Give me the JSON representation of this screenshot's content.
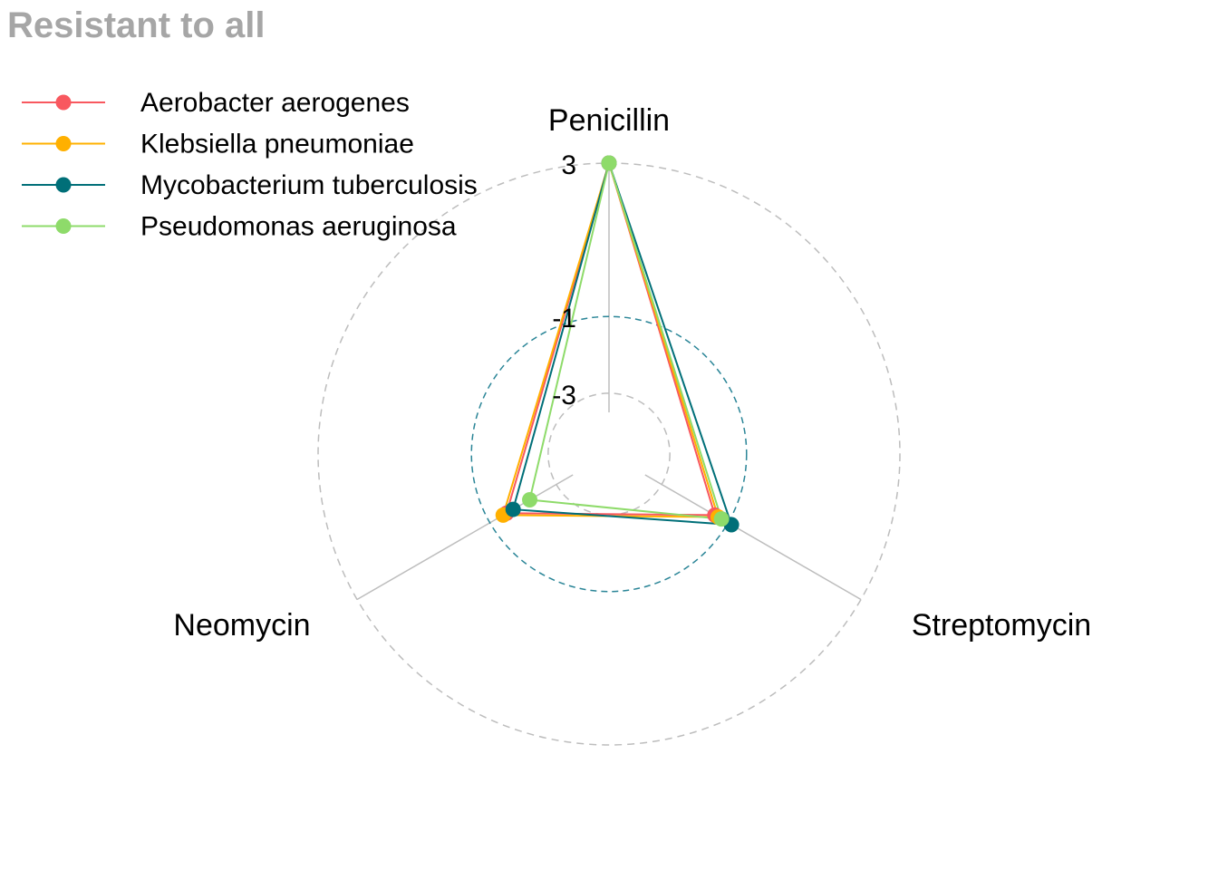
{
  "chart_data": {
    "type": "radar",
    "title": "Resistant to all",
    "axes": [
      "Penicillin",
      "Streptomycin",
      "Neomycin"
    ],
    "grid_levels": [
      -3,
      -1,
      3
    ],
    "grid_labels": [
      "-3",
      "-1",
      "3"
    ],
    "range": [
      -3.5,
      3
    ],
    "legend_position": "top-left",
    "series": [
      {
        "name": "Aerobacter aerogenes",
        "color": "#F8585F",
        "values": [
          3.0,
          -1.4,
          -1.5
        ]
      },
      {
        "name": "Klebsiella pneumoniae",
        "color": "#FFB000",
        "values": [
          3.0,
          -1.3,
          -1.4
        ]
      },
      {
        "name": "Mycobacterium tuberculosis",
        "color": "#006F78",
        "values": [
          3.0,
          -0.9,
          -1.7
        ]
      },
      {
        "name": "Pseudomonas aeruginosa",
        "color": "#8EDB6A",
        "values": [
          3.0,
          -1.2,
          -2.2
        ]
      }
    ]
  }
}
